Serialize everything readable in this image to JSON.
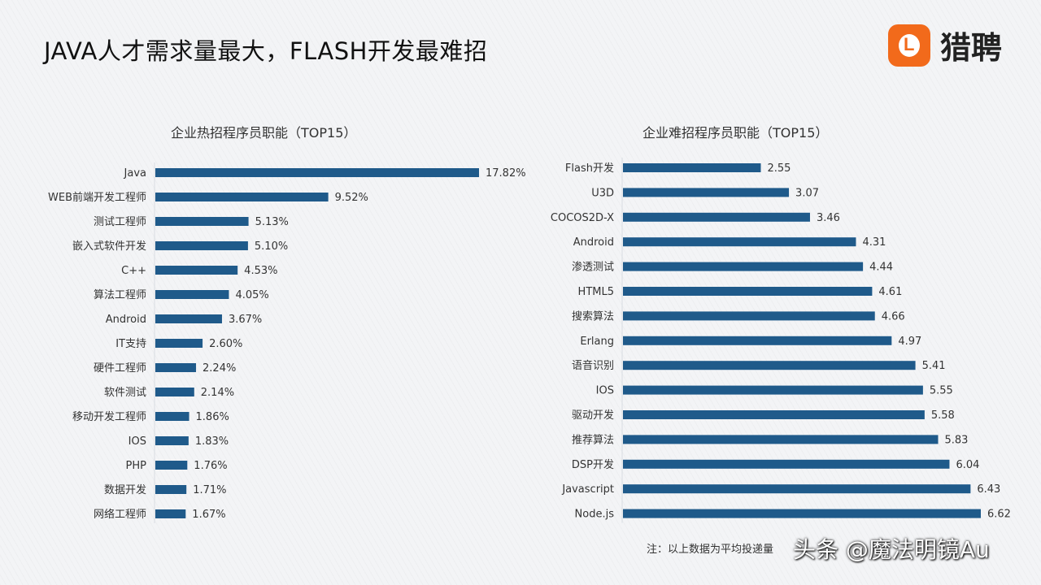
{
  "header": {
    "title": "JAVA人才需求量最大，FLASH开发最难招",
    "logo_text": "猎聘",
    "brand_color": "#f26a1b"
  },
  "chart_data": [
    {
      "type": "bar",
      "orientation": "horizontal",
      "title": "企业热招程序员职能（TOP15）",
      "bar_color": "#1f5a8a",
      "categories": [
        "Java",
        "WEB前端开发工程师",
        "测试工程师",
        "嵌入式软件开发",
        "C++",
        "算法工程师",
        "Android",
        "IT支持",
        "硬件工程师",
        "软件测试",
        "移动开发工程师",
        "IOS",
        "PHP",
        "数据开发",
        "网络工程师"
      ],
      "values": [
        17.82,
        9.52,
        5.13,
        5.1,
        4.53,
        4.05,
        3.67,
        2.6,
        2.24,
        2.14,
        1.86,
        1.83,
        1.76,
        1.71,
        1.67
      ],
      "labels": [
        "17.82%",
        "9.52%",
        "5.13%",
        "5.10%",
        "4.53%",
        "4.05%",
        "3.67%",
        "2.60%",
        "2.24%",
        "2.14%",
        "1.86%",
        "1.83%",
        "1.76%",
        "1.71%",
        "1.67%"
      ],
      "xlim": [
        0,
        17.82
      ],
      "grid": false
    },
    {
      "type": "bar",
      "orientation": "horizontal",
      "title": "企业难招程序员职能（TOP15）",
      "bar_color": "#1f5a8a",
      "categories": [
        "Flash开发",
        "U3D",
        "COCOS2D-X",
        "Android",
        "渗透测试",
        "HTML5",
        "搜索算法",
        "Erlang",
        "语音识别",
        "IOS",
        "驱动开发",
        "推荐算法",
        "DSP开发",
        "Javascript",
        "Node.js"
      ],
      "values": [
        2.55,
        3.07,
        3.46,
        4.31,
        4.44,
        4.61,
        4.66,
        4.97,
        5.41,
        5.55,
        5.58,
        5.83,
        6.04,
        6.43,
        6.62
      ],
      "labels": [
        "2.55",
        "3.07",
        "3.46",
        "4.31",
        "4.44",
        "4.61",
        "4.66",
        "4.97",
        "5.41",
        "5.55",
        "5.58",
        "5.83",
        "6.04",
        "6.43",
        "6.62"
      ],
      "xlim": [
        0,
        6.62
      ],
      "grid": false
    }
  ],
  "footer": {
    "note": "注：以上数据为平均投递量",
    "watermark": "头条 @魔法明镜Au"
  }
}
